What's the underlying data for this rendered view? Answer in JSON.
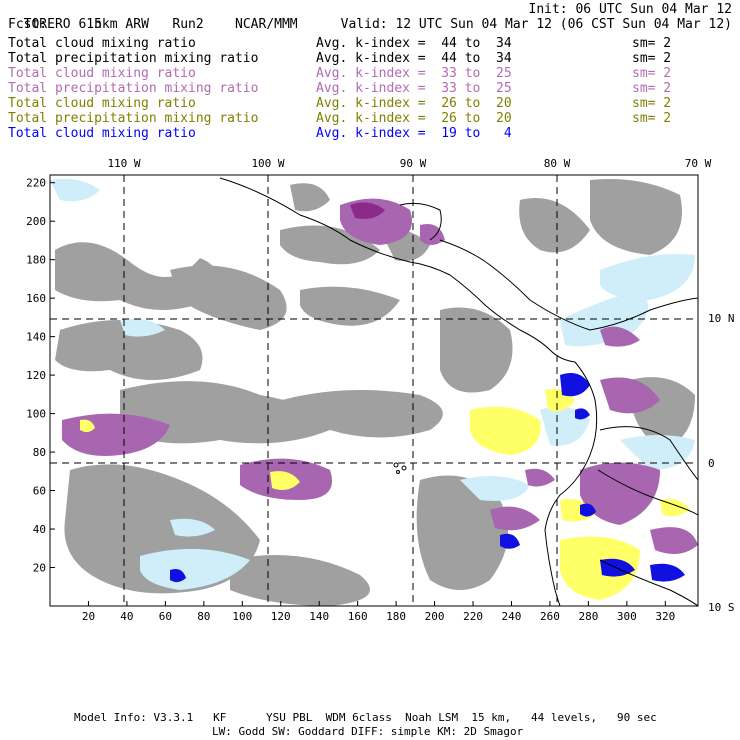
{
  "header": {
    "model": "TORERO",
    "grid": "15km ARW",
    "run": "Run2",
    "org": "NCAR/MMM",
    "init": "Init: 06 UTC Sun 04 Mar 12",
    "fcst_label": "Fcst:",
    "fcst_value": "6 h",
    "valid": "Valid: 12 UTC Sun 04 Mar 12 (06 CST Sun 04 Mar 12)"
  },
  "legend": [
    {
      "field": "Total cloud mixing ratio",
      "range": "Avg. k-index =  44 to  34",
      "sm": "sm= 2",
      "color": "#000000"
    },
    {
      "field": "Total precipitation mixing ratio",
      "range": "Avg. k-index =  44 to  34",
      "sm": "sm= 2",
      "color": "#000000"
    },
    {
      "field": "Total cloud mixing ratio",
      "range": "Avg. k-index =  33 to  25",
      "sm": "sm= 2",
      "color": "#b36bb3"
    },
    {
      "field": "Total precipitation mixing ratio",
      "range": "Avg. k-index =  33 to  25",
      "sm": "sm= 2",
      "color": "#b36bb3"
    },
    {
      "field": "Total cloud mixing ratio",
      "range": "Avg. k-index =  26 to  20",
      "sm": "sm= 2",
      "color": "#808000"
    },
    {
      "field": "Total precipitation mixing ratio",
      "range": "Avg. k-index =  26 to  20",
      "sm": "sm= 2",
      "color": "#808000"
    },
    {
      "field": "Total cloud mixing ratio",
      "range": "Avg. k-index =  19 to   4",
      "sm": "",
      "color": "#0000ff"
    }
  ],
  "axes": {
    "top_labels": [
      "110 W",
      "100 W",
      "90 W",
      "80 W",
      "70 W"
    ],
    "right_labels": [
      "10 N",
      "0",
      "10 S"
    ],
    "left_ticks": [
      "220",
      "200",
      "180",
      "160",
      "140",
      "120",
      "100",
      "80",
      "60",
      "40",
      "20"
    ],
    "bottom_ticks": [
      "20",
      "40",
      "60",
      "80",
      "100",
      "120",
      "140",
      "160",
      "180",
      "200",
      "220",
      "240",
      "260",
      "280",
      "300",
      "320"
    ]
  },
  "footer": {
    "line1": "Model Info: V3.3.1   KF      YSU PBL  WDM 6class  Noah LSM  15 km,   44 levels,   90 sec",
    "line2": "LW: Godd SW: Goddard DIFF: simple KM: 2D Smagor"
  },
  "colors": {
    "gray": "#a0a0a0",
    "light_blue": "#cfeefa",
    "purple": "#a866b0",
    "dark_purple": "#8a2a8a",
    "yellow": "#ffff66",
    "blue": "#1010e0"
  }
}
